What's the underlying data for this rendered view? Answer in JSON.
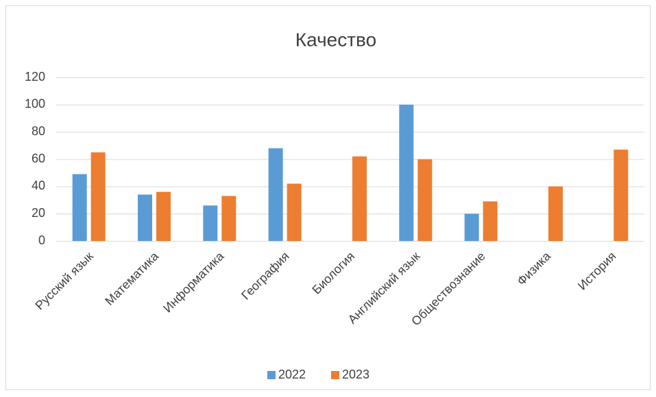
{
  "chart_data": {
    "type": "bar",
    "title": "Качество",
    "categories": [
      "Русский язык",
      "Математика",
      "Информатика",
      "География",
      "Биология",
      "Английский язык",
      "Обществознание",
      "Физика",
      "История"
    ],
    "series": [
      {
        "name": "2022",
        "color": "#5b9bd5",
        "values": [
          49,
          34,
          26,
          68,
          null,
          100,
          20,
          null,
          null
        ]
      },
      {
        "name": "2023",
        "color": "#ed7d31",
        "values": [
          65,
          36,
          33,
          42,
          62,
          60,
          29,
          40,
          67
        ]
      }
    ],
    "ylim": [
      0,
      120
    ],
    "yticks": [
      0,
      20,
      40,
      60,
      80,
      100,
      120
    ],
    "grid": true,
    "legend": "bottom"
  }
}
